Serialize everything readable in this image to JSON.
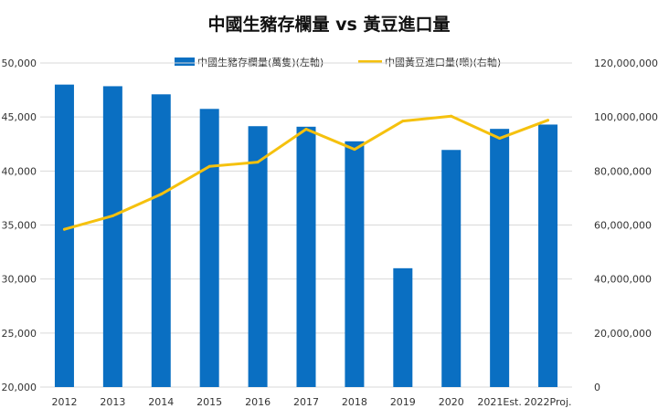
{
  "colors": {
    "bar": "#0a6fc2",
    "line": "#f5c10e",
    "grid": "#d9d9d9",
    "axis_text": "#333333",
    "title": "#111111"
  },
  "chart_data": {
    "type": "bar",
    "title": "中國生豬存欄量 vs 黃豆進口量",
    "categories": [
      "2012",
      "2013",
      "2014",
      "2015",
      "2016",
      "2017",
      "2018",
      "2019",
      "2020",
      "2021Est.",
      "2022Proj."
    ],
    "series": [
      {
        "name": "中國生豬存欄量(萬隻)(左軸)",
        "type": "bar",
        "axis": "left",
        "values": [
          48000,
          47850,
          47100,
          45750,
          44150,
          44100,
          42750,
          31000,
          41950,
          43900,
          44300
        ]
      },
      {
        "name": "中國黃豆進口量(噸)(右軸)",
        "type": "line",
        "axis": "right",
        "values": [
          58400000,
          63400000,
          71400000,
          81700000,
          83300000,
          95500000,
          88000000,
          98500000,
          100300000,
          92100000,
          98800000
        ]
      }
    ],
    "left_axis": {
      "ylim": [
        20000,
        50000
      ],
      "ticks": [
        "20,000",
        "25,000",
        "30,000",
        "35,000",
        "40,000",
        "45,000",
        "50,000"
      ]
    },
    "right_axis": {
      "ylim": [
        0,
        120000000
      ],
      "ticks": [
        "0",
        "20,000,000",
        "40,000,000",
        "60,000,000",
        "80,000,000",
        "100,000,000",
        "120,000,000"
      ]
    },
    "grid": true,
    "legend_position": "top-center"
  }
}
